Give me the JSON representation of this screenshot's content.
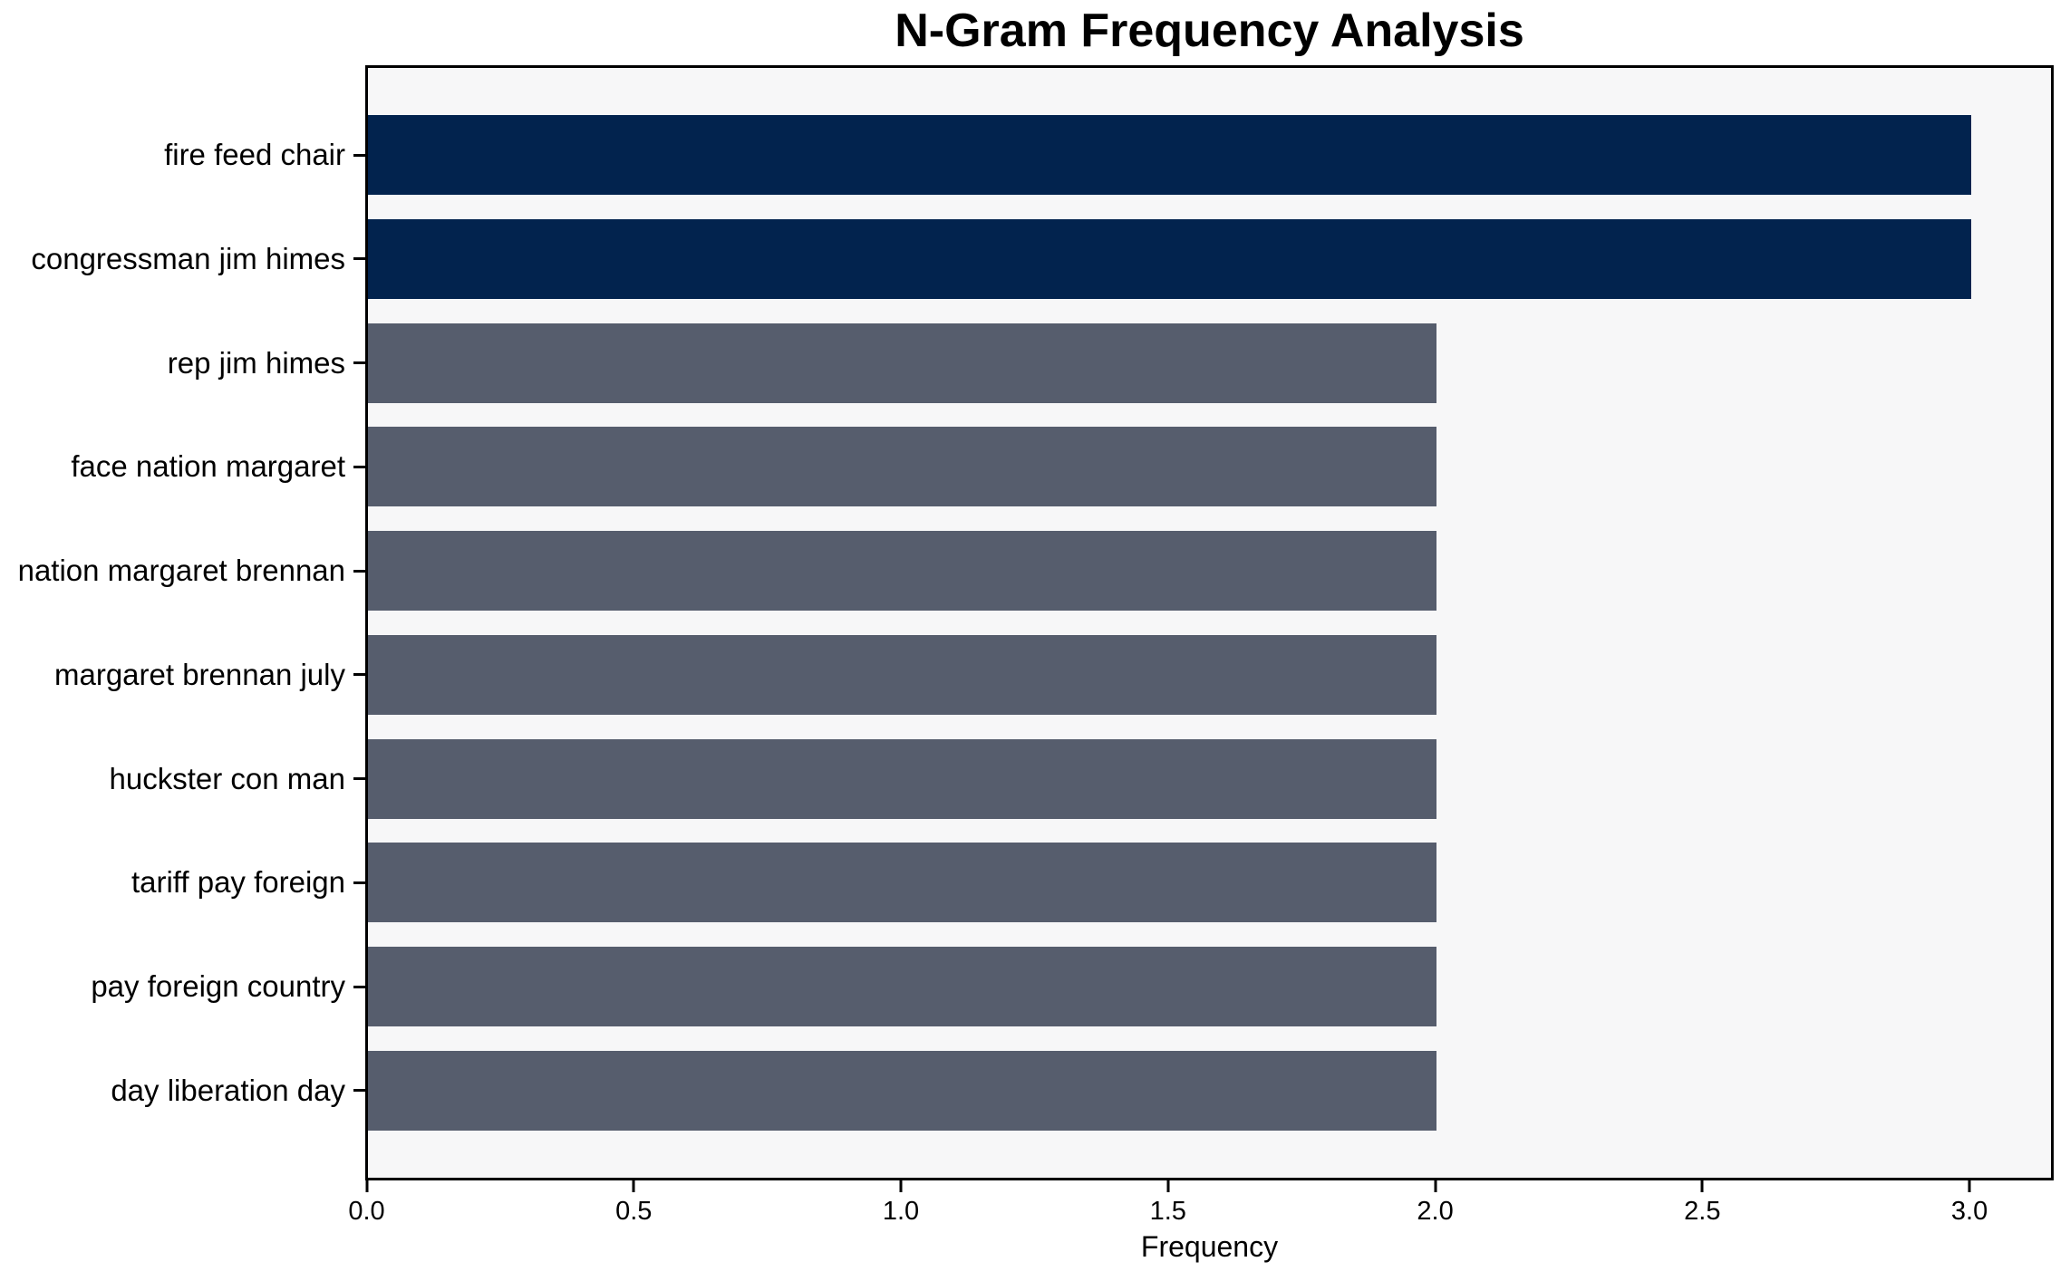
{
  "chart_data": {
    "type": "bar",
    "orientation": "horizontal",
    "title": "N-Gram Frequency Analysis",
    "xlabel": "Frequency",
    "categories": [
      "fire feed chair",
      "congressman jim himes",
      "rep jim himes",
      "face nation margaret",
      "nation margaret brennan",
      "margaret brennan july",
      "huckster con man",
      "tariff pay foreign",
      "pay foreign country",
      "day liberation day"
    ],
    "values": [
      3,
      3,
      2,
      2,
      2,
      2,
      2,
      2,
      2,
      2
    ],
    "bar_colors": [
      "#02234e",
      "#02234e",
      "#565d6d",
      "#565d6d",
      "#565d6d",
      "#565d6d",
      "#565d6d",
      "#565d6d",
      "#565d6d",
      "#565d6d"
    ],
    "xlim": [
      0,
      3.15
    ],
    "xticks": [
      "0.0",
      "0.5",
      "1.0",
      "1.5",
      "2.0",
      "2.5",
      "3.0"
    ],
    "grid": false,
    "legend": null,
    "colors": {
      "highlight": "#02234e",
      "default_bar": "#565d6d",
      "plot_background": "#f7f7f8",
      "spine": "#000000"
    }
  }
}
